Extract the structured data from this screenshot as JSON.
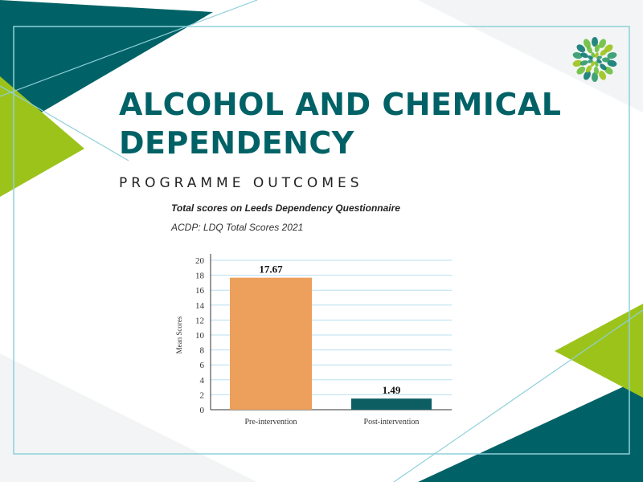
{
  "slide": {
    "title_line1": "ALCOHOL AND CHEMICAL",
    "title_line2": "DEPENDENCY",
    "subtitle": "PROGRAMME OUTCOMES"
  },
  "colors": {
    "teal": "#006266",
    "lime": "#9cc31a",
    "accent_line": "#8fd0da",
    "bar_pre": "#eda05c",
    "bar_post": "#0d5e63",
    "gridline": "#b8dff0"
  },
  "chart_data": {
    "type": "bar",
    "title": "Total scores on Leeds Dependency Questionnaire",
    "subtitle": "ACDP: LDQ Total Scores 2021",
    "ylabel": "Mean Scores",
    "xlabel": "",
    "categories": [
      "Pre-intervention",
      "Post-intervention"
    ],
    "values": [
      17.67,
      1.49
    ],
    "value_labels": [
      "17.67",
      "1.49"
    ],
    "ylim": [
      0,
      20
    ],
    "yticks": [
      0,
      2,
      4,
      6,
      8,
      10,
      12,
      14,
      16,
      18,
      20
    ],
    "grid": true
  }
}
